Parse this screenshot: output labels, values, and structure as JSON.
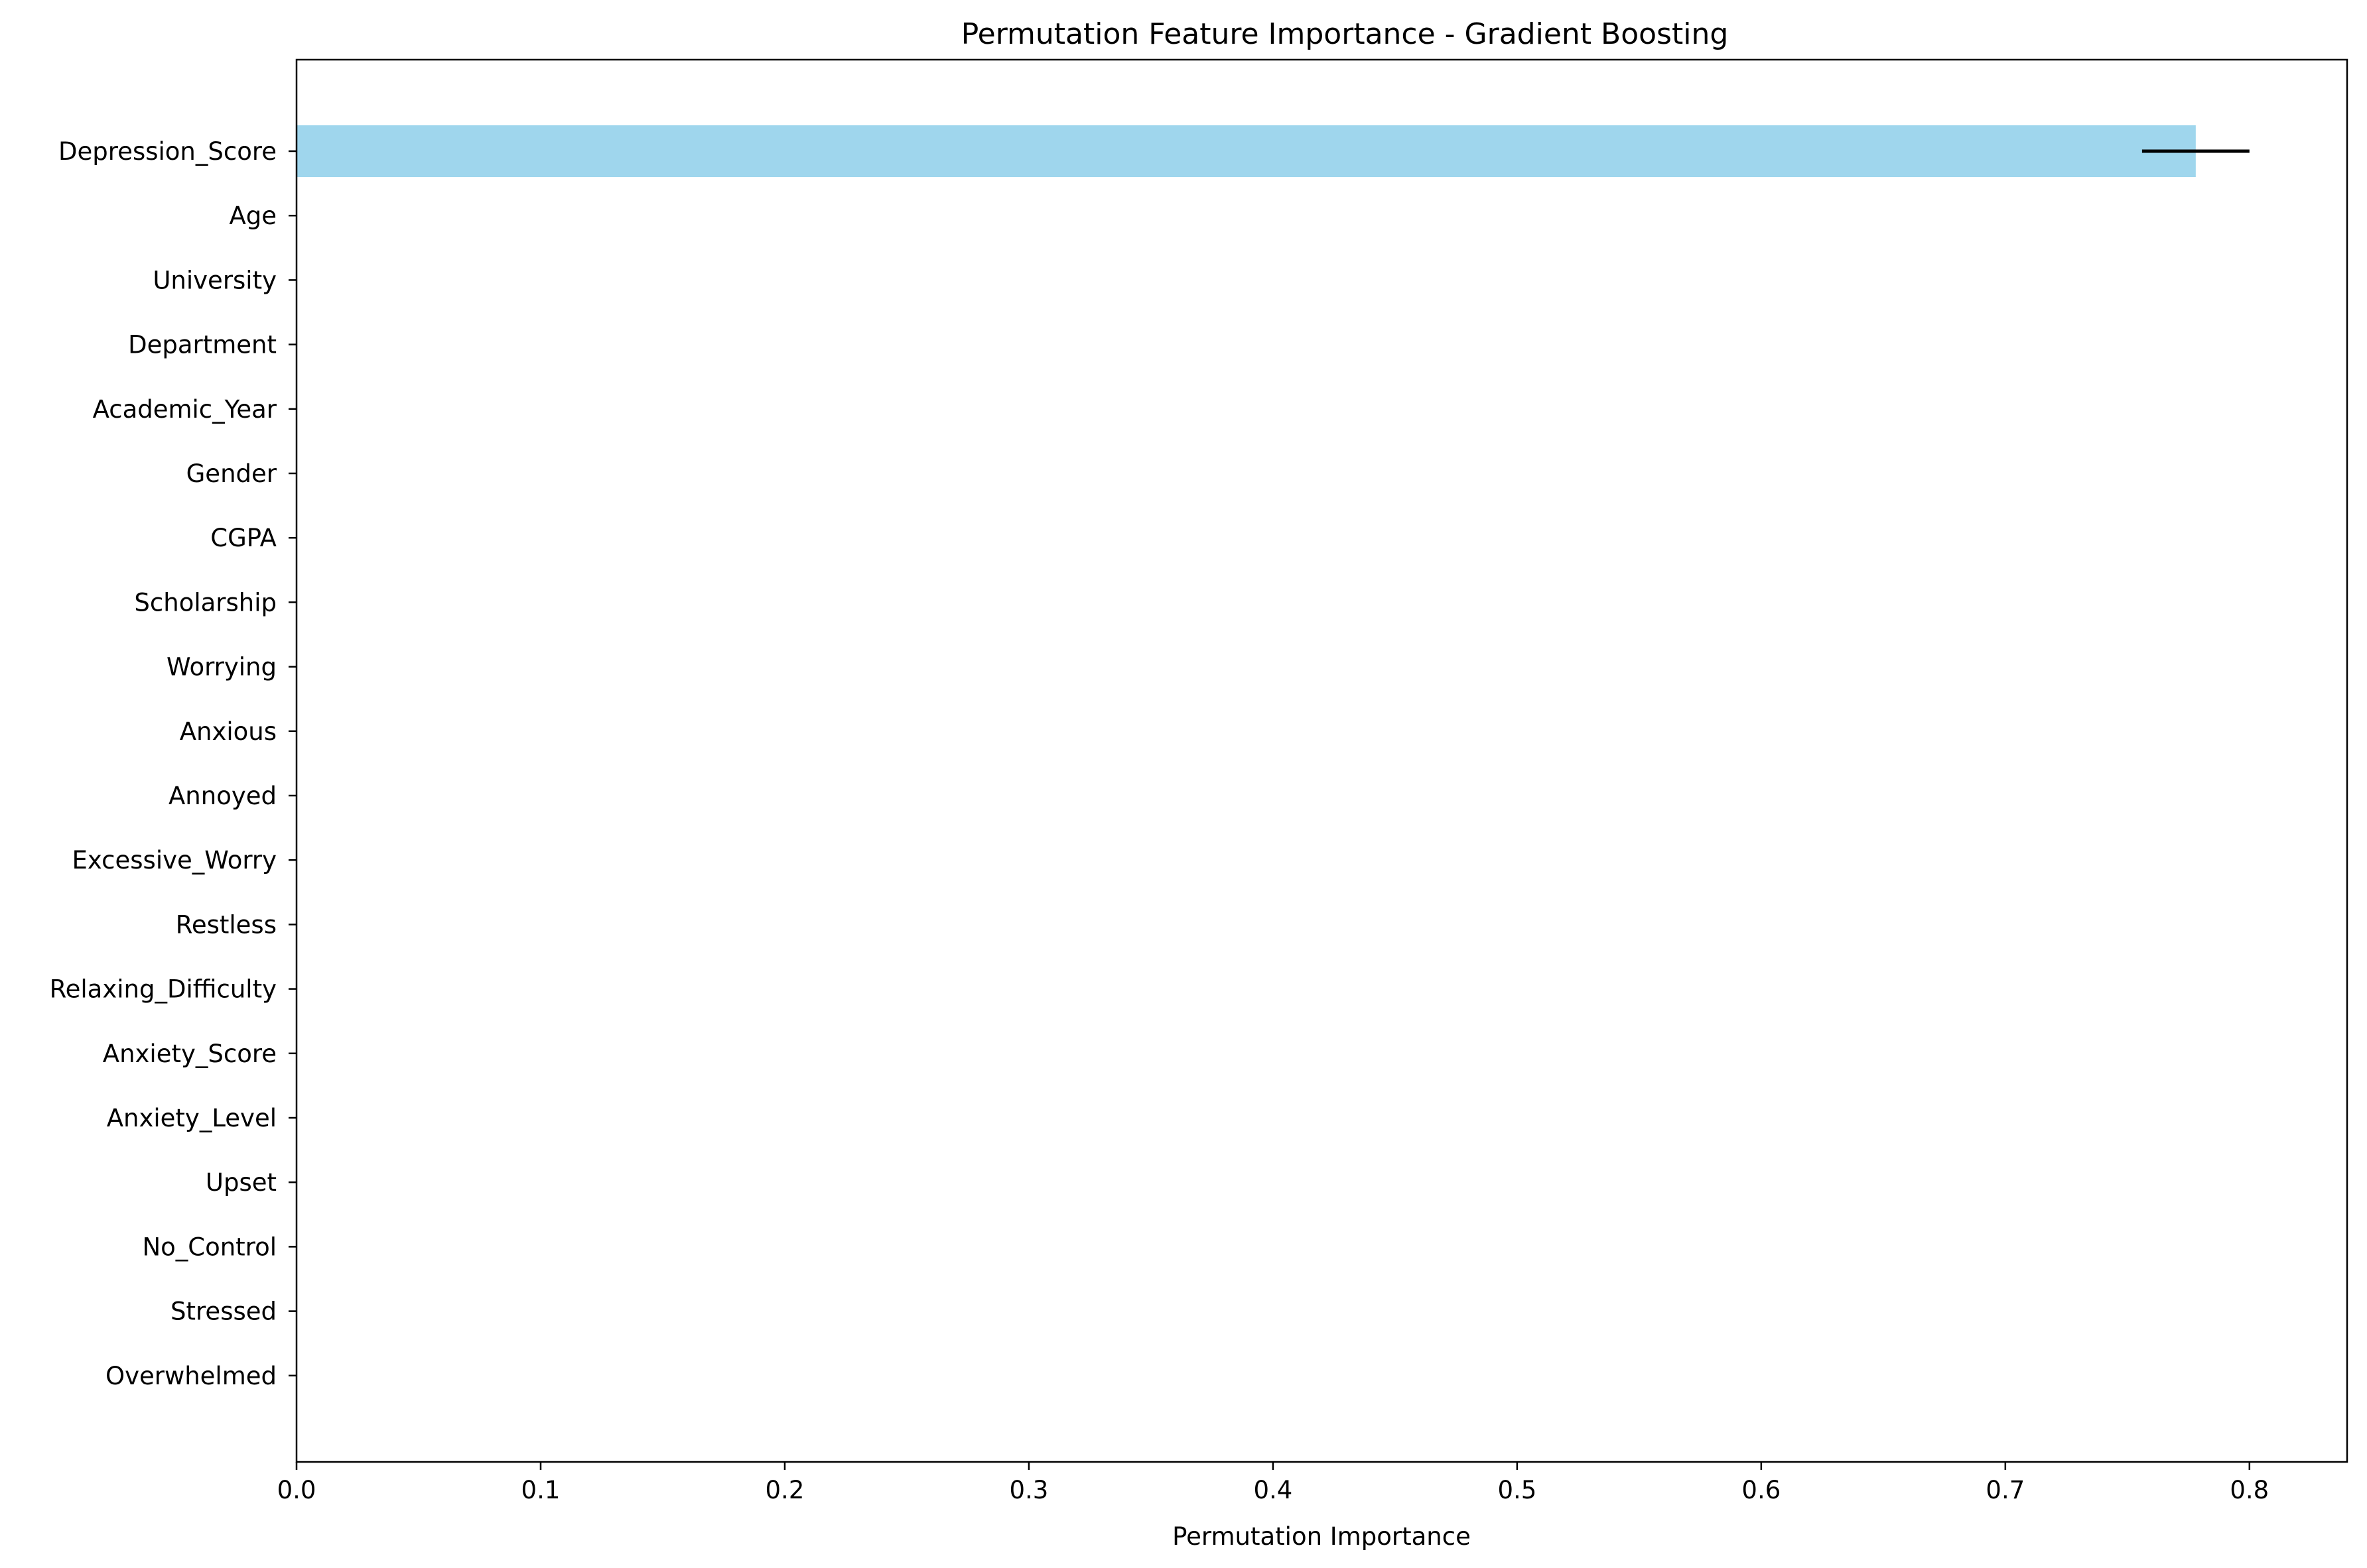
{
  "chart_data": {
    "type": "bar",
    "orientation": "horizontal",
    "title": "Permutation Feature Importance - Gradient Boosting",
    "xlabel": "Permutation Importance",
    "ylabel": "",
    "xlim": [
      0,
      0.84
    ],
    "x_ticks": [
      "0.0",
      "0.1",
      "0.2",
      "0.3",
      "0.4",
      "0.5",
      "0.6",
      "0.7",
      "0.8"
    ],
    "x_tick_values": [
      0,
      0.1,
      0.2,
      0.3,
      0.4,
      0.5,
      0.6,
      0.7,
      0.8
    ],
    "grid": false,
    "bar_color": "#9fd6ed",
    "error_color": "#000000",
    "categories": [
      "Depression_Score",
      "Age",
      "University",
      "Department",
      "Academic_Year",
      "Gender",
      "CGPA",
      "Scholarship",
      "Worrying",
      "Anxious",
      "Annoyed",
      "Excessive_Worry",
      "Restless",
      "Relaxing_Difficulty",
      "Anxiety_Score",
      "Anxiety_Level",
      "Upset",
      "No_Control",
      "Stressed",
      "Overwhelmed"
    ],
    "values": [
      0.778,
      0,
      0,
      0,
      0,
      0,
      0,
      0,
      0,
      0,
      0,
      0,
      0,
      0,
      0,
      0,
      0,
      0,
      0,
      0
    ],
    "errors": [
      0.022,
      0,
      0,
      0,
      0,
      0,
      0,
      0,
      0,
      0,
      0,
      0,
      0,
      0,
      0,
      0,
      0,
      0,
      0,
      0
    ]
  }
}
